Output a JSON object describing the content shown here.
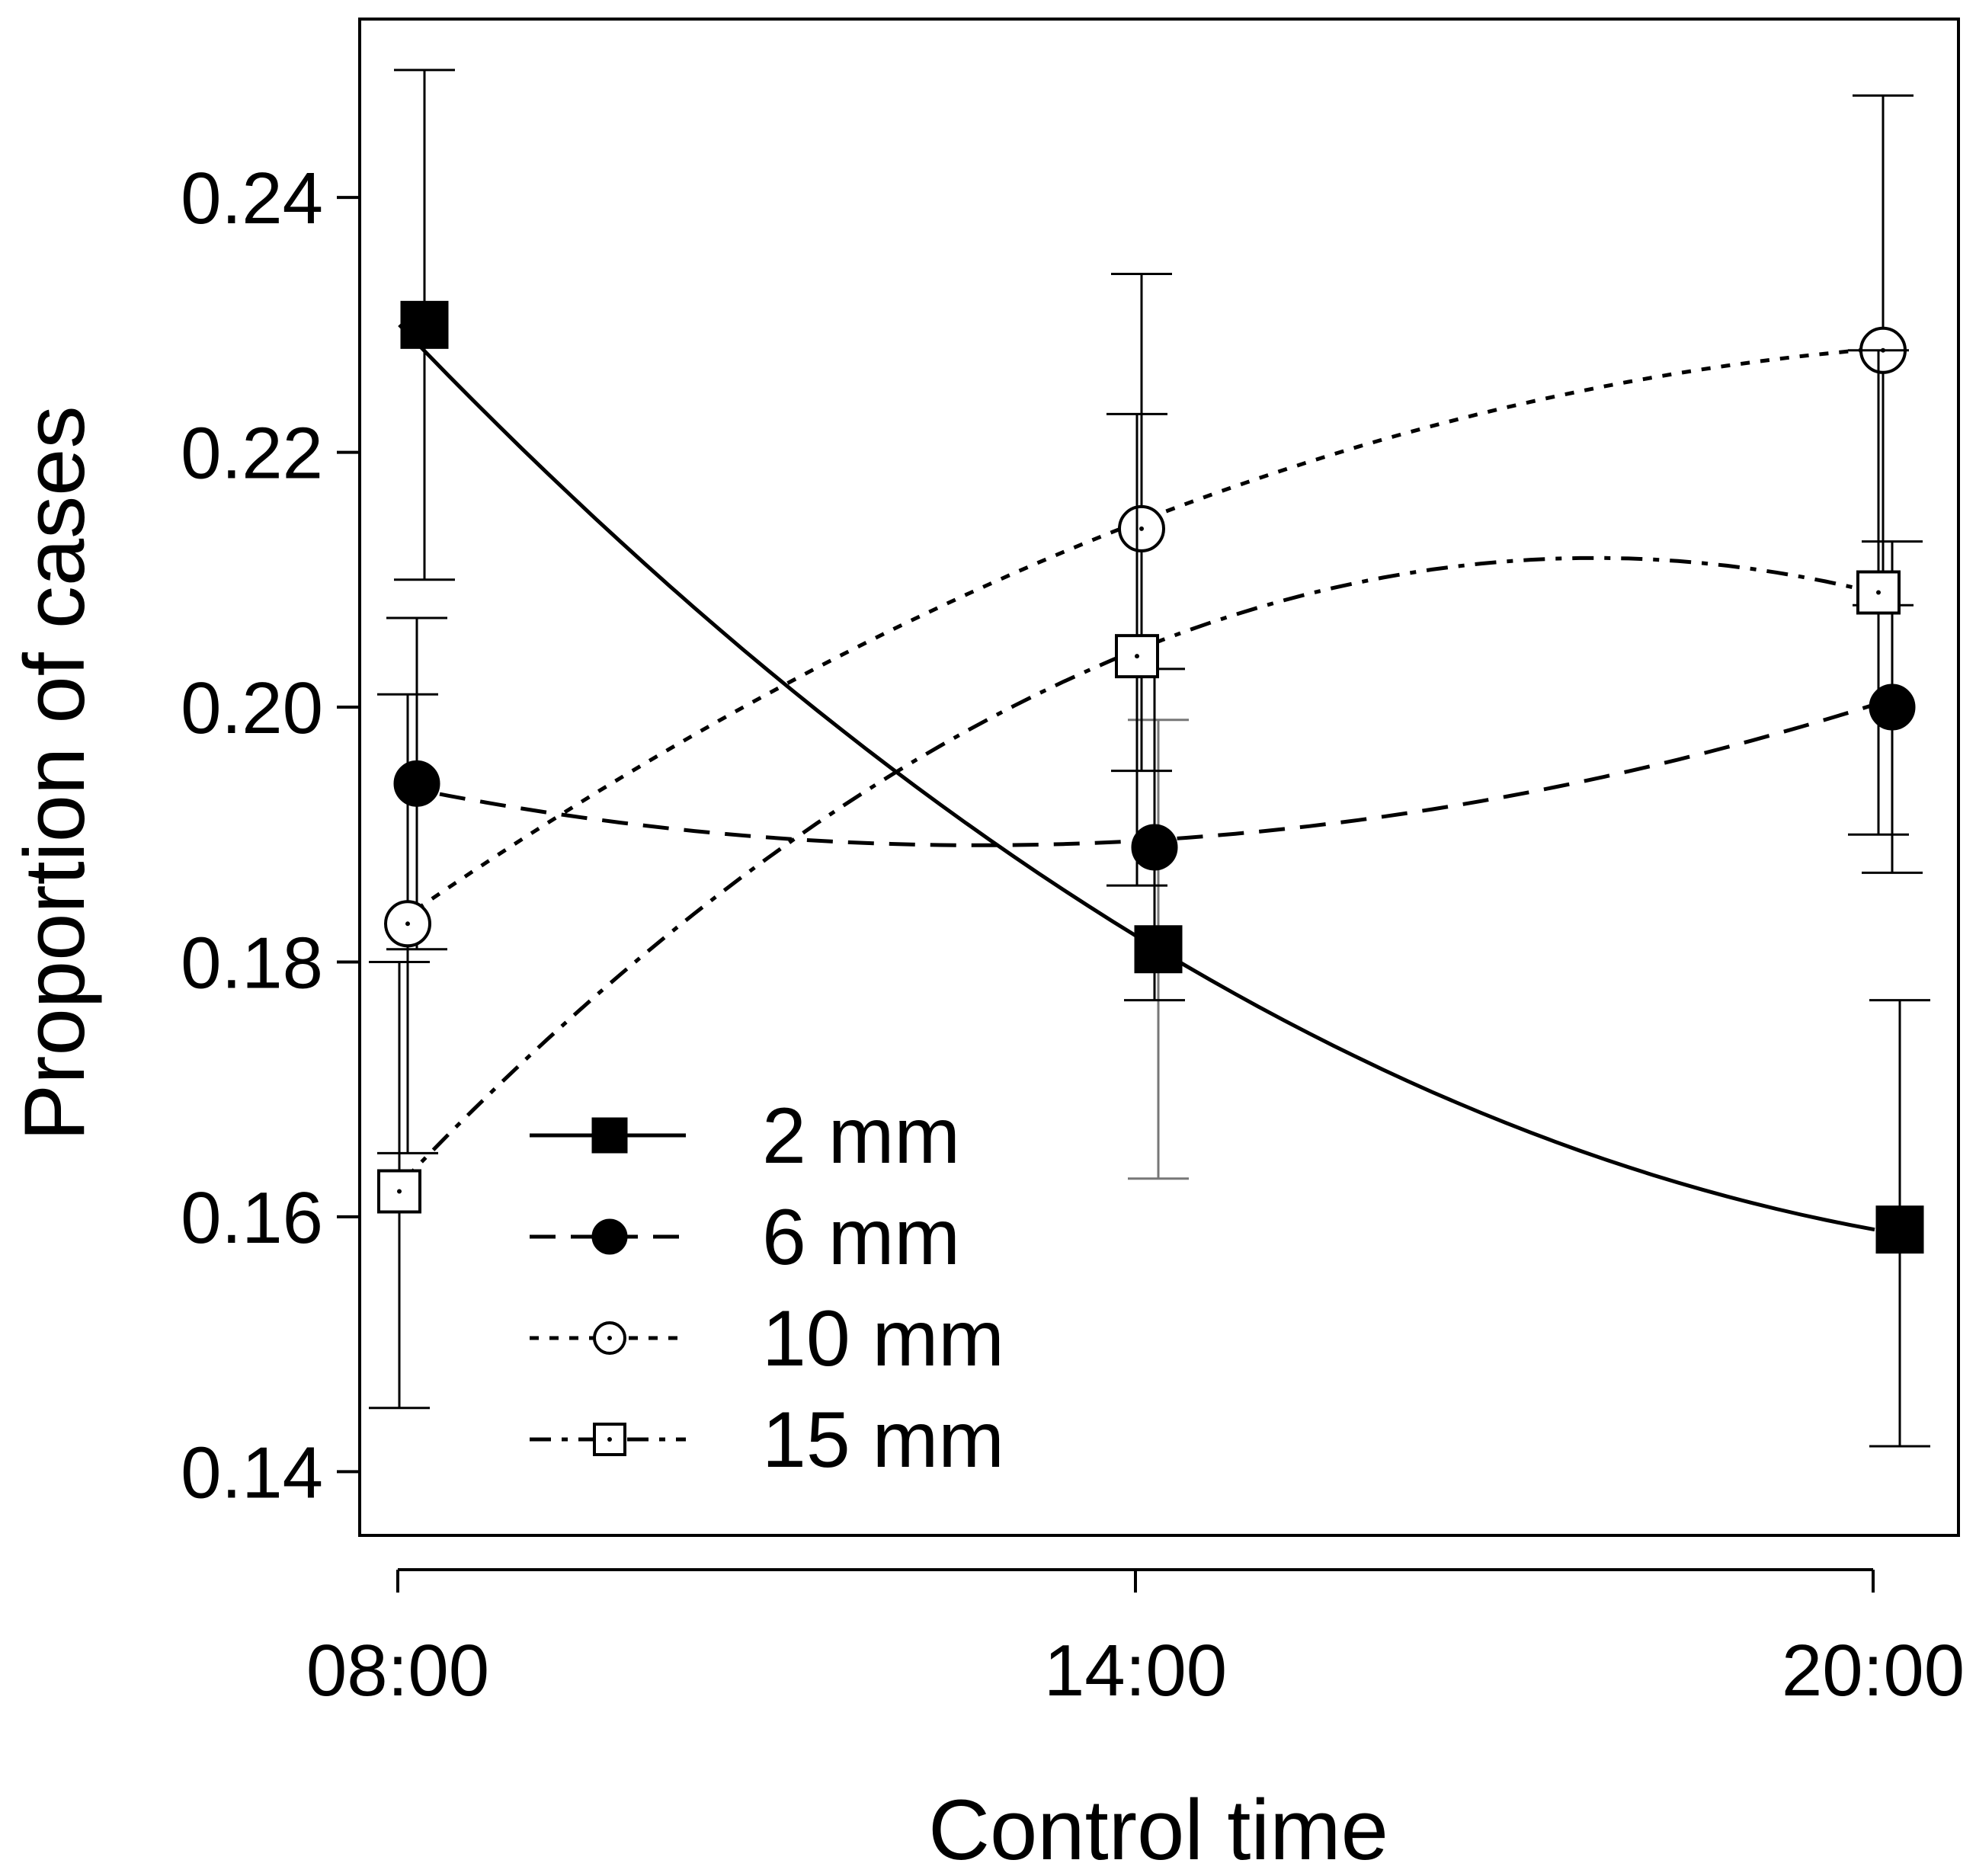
{
  "chart_data": {
    "type": "line",
    "title": "",
    "xlabel": "Control time",
    "ylabel": "Proportion of cases",
    "categories": [
      "08:00",
      "14:00",
      "20:00"
    ],
    "yticks": [
      "0.14",
      "0.16",
      "0.18",
      "0.20",
      "0.22",
      "0.24"
    ],
    "ylim": [
      0.135,
      0.254
    ],
    "grid": false,
    "legend_position": "bottom-left",
    "series": [
      {
        "name": "2 mm",
        "marker": "filled-square",
        "line_style": "solid",
        "values": [
          0.23,
          0.181,
          0.159
        ],
        "error_low": [
          0.21,
          0.163,
          0.142
        ],
        "error_high": [
          0.25,
          0.199,
          0.177
        ],
        "x_offset": [
          0.35,
          0.3,
          0.35
        ],
        "fit": [
          0.23,
          0.182,
          0.159
        ]
      },
      {
        "name": "6 mm",
        "marker": "filled-circle",
        "line_style": "dashed",
        "values": [
          0.194,
          0.189,
          0.2
        ],
        "error_low": [
          0.181,
          0.177,
          0.187
        ],
        "error_high": [
          0.207,
          0.203,
          0.213
        ],
        "x_offset": [
          0.25,
          0.25,
          0.25
        ],
        "fit": [
          0.1938,
          0.1895,
          0.2002
        ]
      },
      {
        "name": "10 mm",
        "marker": "open-circle",
        "line_style": "dotted",
        "values": [
          0.183,
          0.214,
          0.228
        ],
        "error_low": [
          0.165,
          0.195,
          0.208
        ],
        "error_high": [
          0.201,
          0.234,
          0.248
        ],
        "x_offset": [
          0.13,
          0.08,
          0.13
        ],
        "fit": [
          0.1832,
          0.2145,
          0.2281
        ]
      },
      {
        "name": "15 mm",
        "marker": "open-square",
        "line_style": "dash-dot",
        "values": [
          0.162,
          0.204,
          0.209
        ],
        "error_low": [
          0.145,
          0.186,
          0.19
        ],
        "error_high": [
          0.18,
          0.223,
          0.228
        ],
        "x_offset": [
          0.02,
          0.02,
          0.07
        ],
        "fit": [
          0.1625,
          0.2045,
          0.209
        ]
      }
    ]
  }
}
